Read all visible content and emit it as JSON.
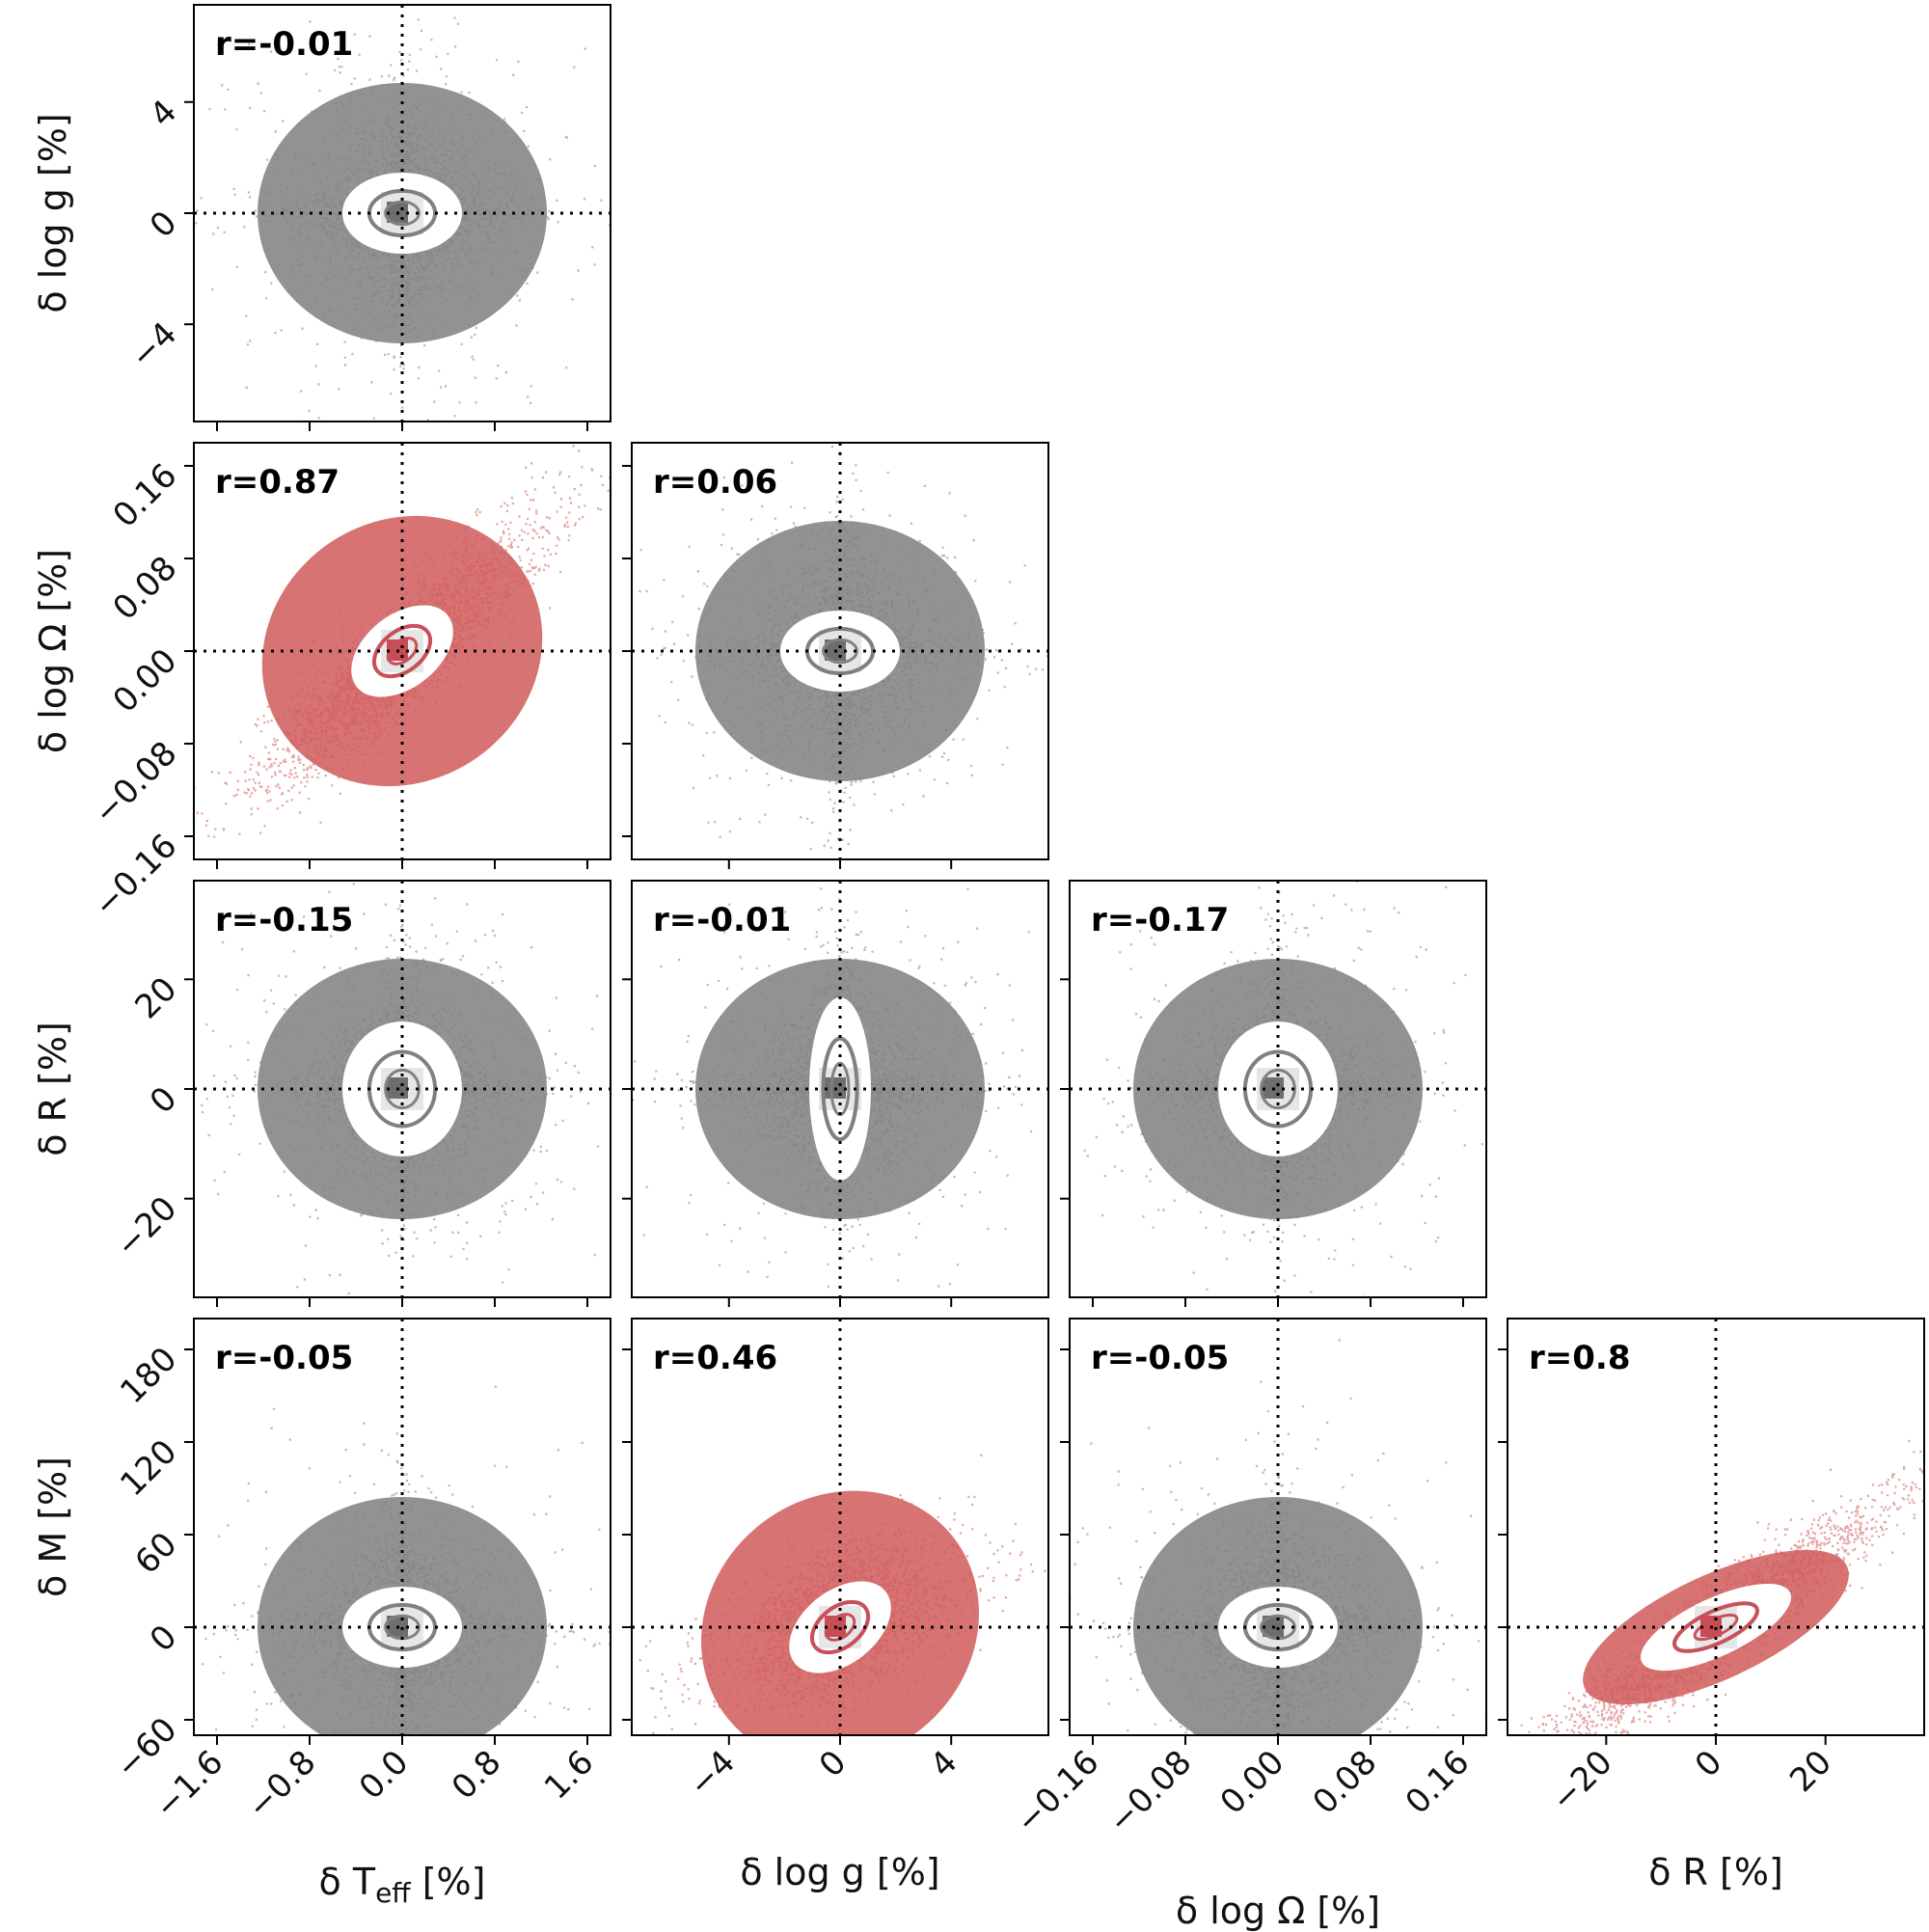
{
  "chart_data": {
    "type": "scatter",
    "layout": "corner",
    "variables": [
      {
        "id": "teff",
        "label": "δ T_eff [%]",
        "range": [
          -1.8,
          1.8
        ],
        "ticks": [
          -1.6,
          -0.8,
          0.0,
          0.8,
          1.6
        ],
        "tick_labels": [
          "−1.6",
          "−0.8",
          "0.0",
          "0.8",
          "1.6"
        ]
      },
      {
        "id": "logg",
        "label": "δ log g [%]",
        "range": [
          -7.5,
          7.5
        ],
        "ticks": [
          -4,
          0,
          4
        ],
        "tick_labels": [
          "−4",
          "0",
          "4"
        ]
      },
      {
        "id": "logomega",
        "label": "δ log Ω [%]",
        "range": [
          -0.18,
          0.18
        ],
        "ticks": [
          -0.16,
          -0.08,
          0.0,
          0.08,
          0.16
        ],
        "tick_labels": [
          "−0.16",
          "−0.08",
          "0.00",
          "0.08",
          "0.16"
        ]
      },
      {
        "id": "R",
        "label": "δ R [%]",
        "range": [
          -38,
          38
        ],
        "ticks": [
          -20,
          0,
          20
        ],
        "tick_labels": [
          "−20",
          "0",
          "20"
        ]
      },
      {
        "id": "M",
        "label": "δ M [%]",
        "range": [
          -70,
          200
        ],
        "ticks": [
          -60,
          0,
          60,
          120,
          180
        ],
        "tick_labels": [
          "−60",
          "0",
          "60",
          "120",
          "180"
        ]
      }
    ],
    "panels": [
      {
        "x": "teff",
        "y": "logg",
        "r": "r=-0.01",
        "highlight": false
      },
      {
        "x": "teff",
        "y": "logomega",
        "r": "r=0.87",
        "highlight": true
      },
      {
        "x": "logg",
        "y": "logomega",
        "r": "r=0.06",
        "highlight": false
      },
      {
        "x": "teff",
        "y": "R",
        "r": "r=-0.15",
        "highlight": false
      },
      {
        "x": "logg",
        "y": "R",
        "r": "r=-0.01",
        "highlight": false
      },
      {
        "x": "logomega",
        "y": "R",
        "r": "r=-0.17",
        "highlight": false
      },
      {
        "x": "teff",
        "y": "M",
        "r": "r=-0.05",
        "highlight": false
      },
      {
        "x": "logg",
        "y": "M",
        "r": "r=0.46",
        "highlight": true
      },
      {
        "x": "logomega",
        "y": "M",
        "r": "r=-0.05",
        "highlight": false
      },
      {
        "x": "R",
        "y": "M",
        "r": "r=0.8",
        "highlight": true
      }
    ],
    "colors": {
      "neutral": "#7f7f7f",
      "correlated": "#d05a5a",
      "contour_neutral": "#808080",
      "contour_correlated": "#c9505a"
    },
    "reference_lines": "dotted at 0 on both axes"
  }
}
